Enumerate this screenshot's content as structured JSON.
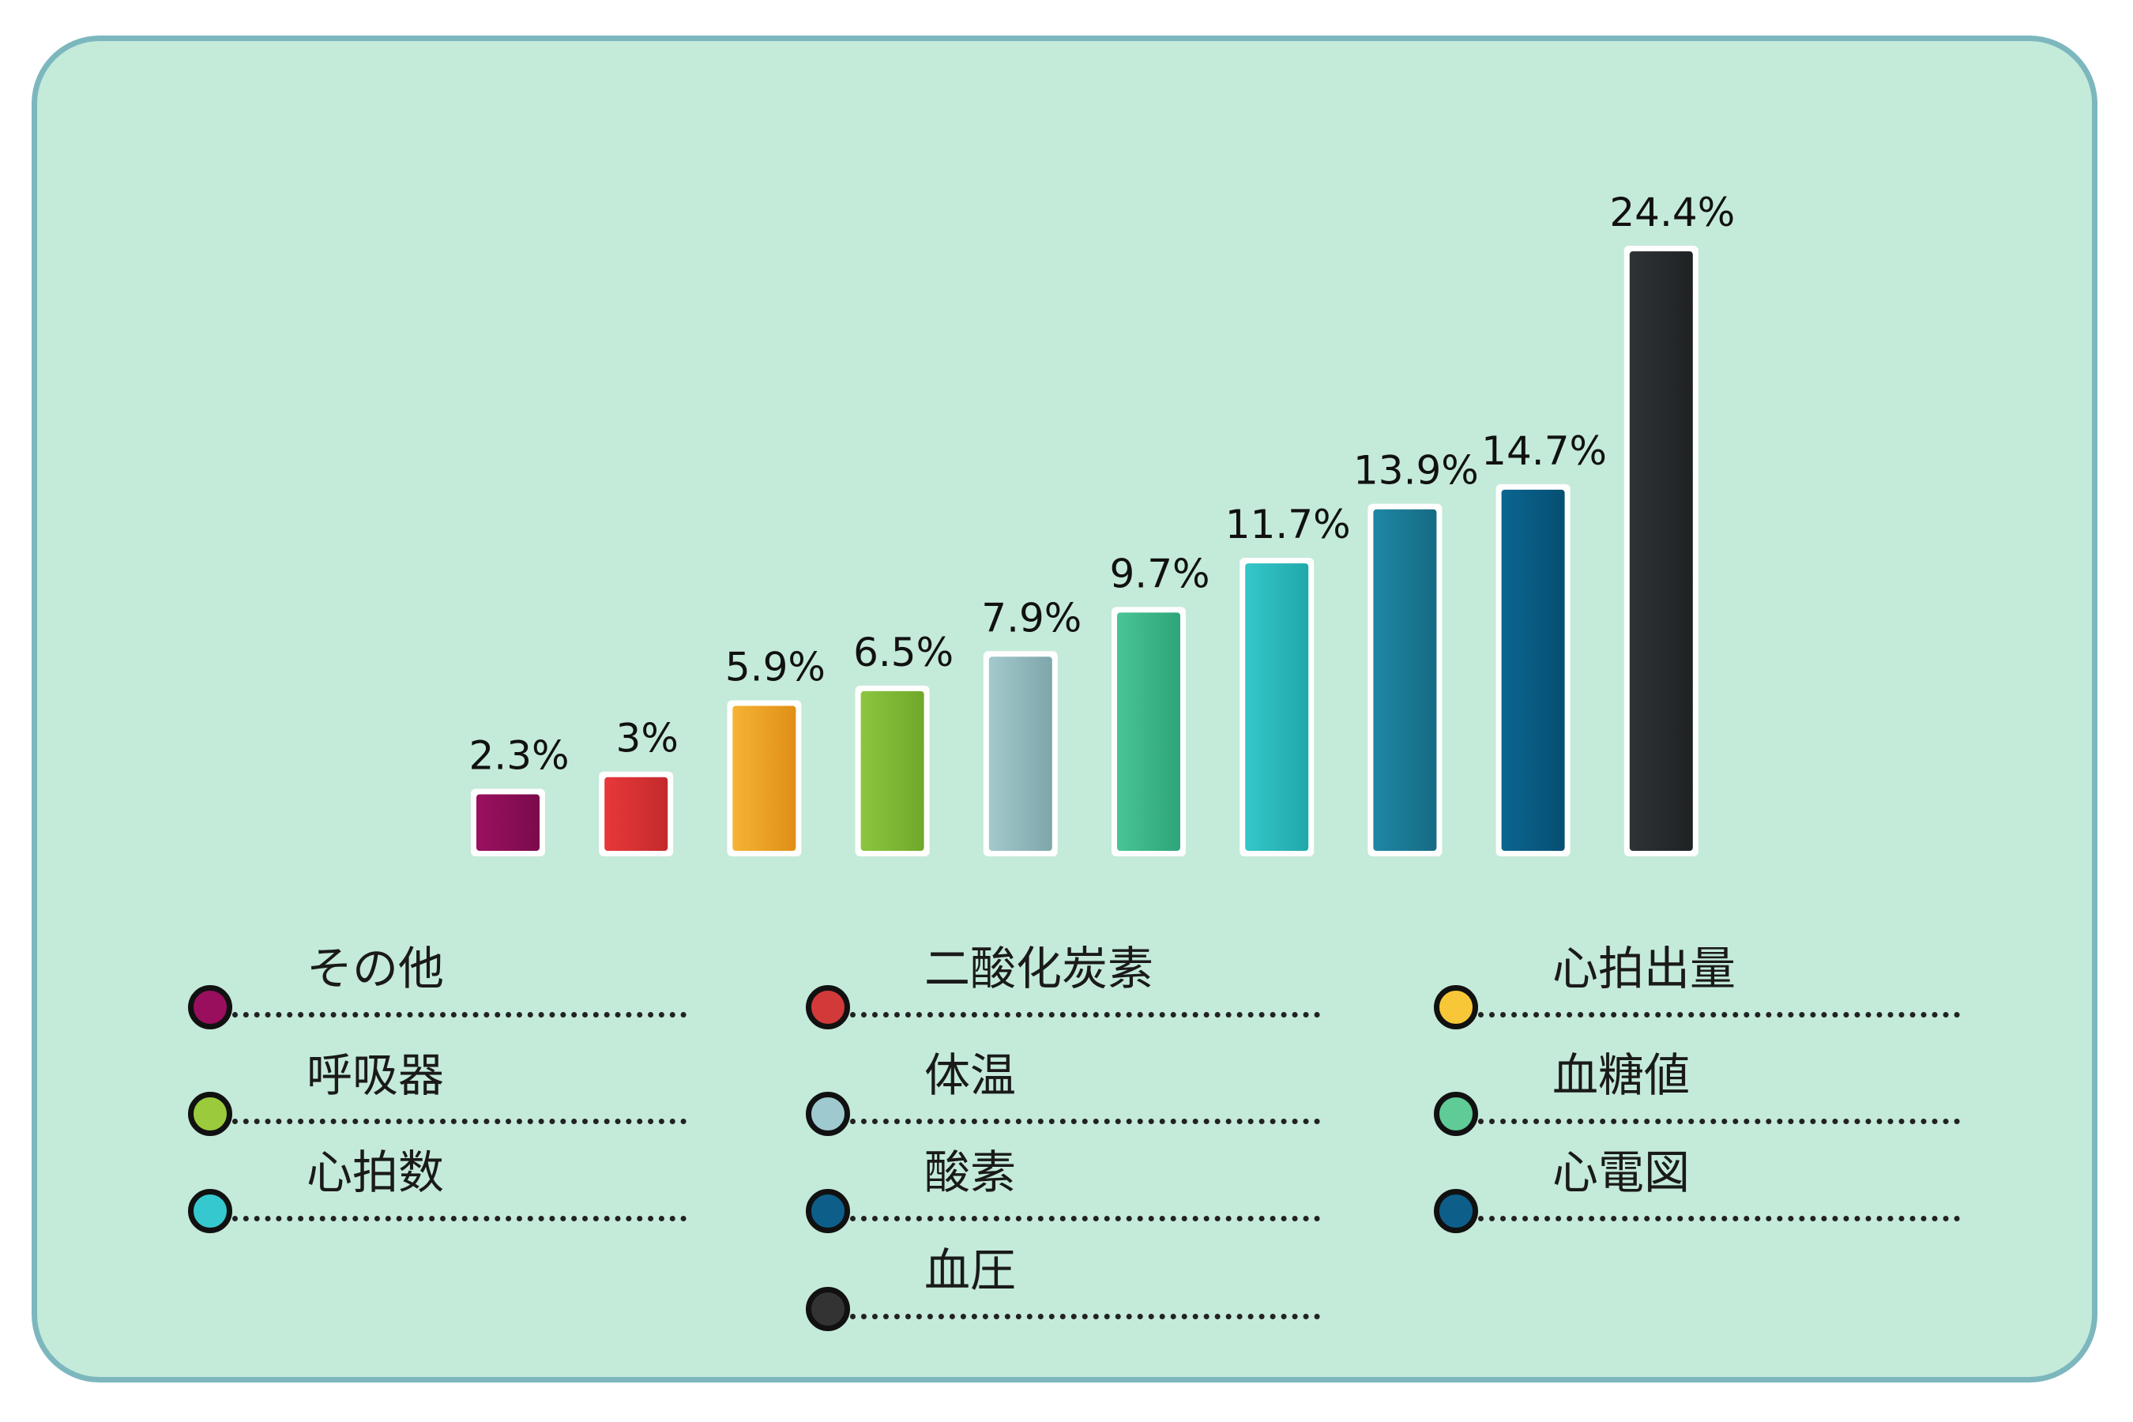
{
  "chart_data": {
    "type": "bar",
    "categories": [
      "その他",
      "二酸化炭素",
      "心拍出量",
      "呼吸器",
      "体温",
      "血糖値",
      "心拍数",
      "酸素",
      "心電図",
      "血圧"
    ],
    "values": [
      2.3,
      3,
      5.9,
      6.5,
      7.9,
      9.7,
      11.7,
      13.9,
      14.7,
      24.4
    ],
    "value_labels": [
      "2.3%",
      "3%",
      "5.9%",
      "6.5%",
      "7.9%",
      "9.7%",
      "11.7%",
      "13.9%",
      "14.7%",
      "24.4%"
    ],
    "unit": "%",
    "grid": false,
    "legend_placement": "bottom",
    "colors": [
      "#9b1060",
      "#e8383a",
      "#f5b335",
      "#8cc63f",
      "#a3c9cc",
      "#48c595",
      "#34c7c9",
      "#1f87a4",
      "#0a6691",
      "#2f3335"
    ],
    "colors_dark": [
      "#7a0b4b",
      "#c32a2c",
      "#e08f16",
      "#70a82a",
      "#7ea7ab",
      "#2ea57a",
      "#20a8aa",
      "#156b84",
      "#064f72",
      "#1e2224"
    ],
    "legend_colors": [
      "#990f5e",
      "#d23a3a",
      "#f8c737",
      "#9bcb3c",
      "#9ec9cf",
      "#5fcb97",
      "#35c9cf",
      "#0d5f8a",
      "#0d5f8a",
      "#333333"
    ],
    "title": "",
    "xlabel": "",
    "ylabel": ""
  },
  "legend": {
    "items": [
      "その他",
      "二酸化炭素",
      "心拍出量",
      "呼吸器",
      "体温",
      "血糖値",
      "心拍数",
      "酸素",
      "心電図",
      "血圧"
    ]
  }
}
